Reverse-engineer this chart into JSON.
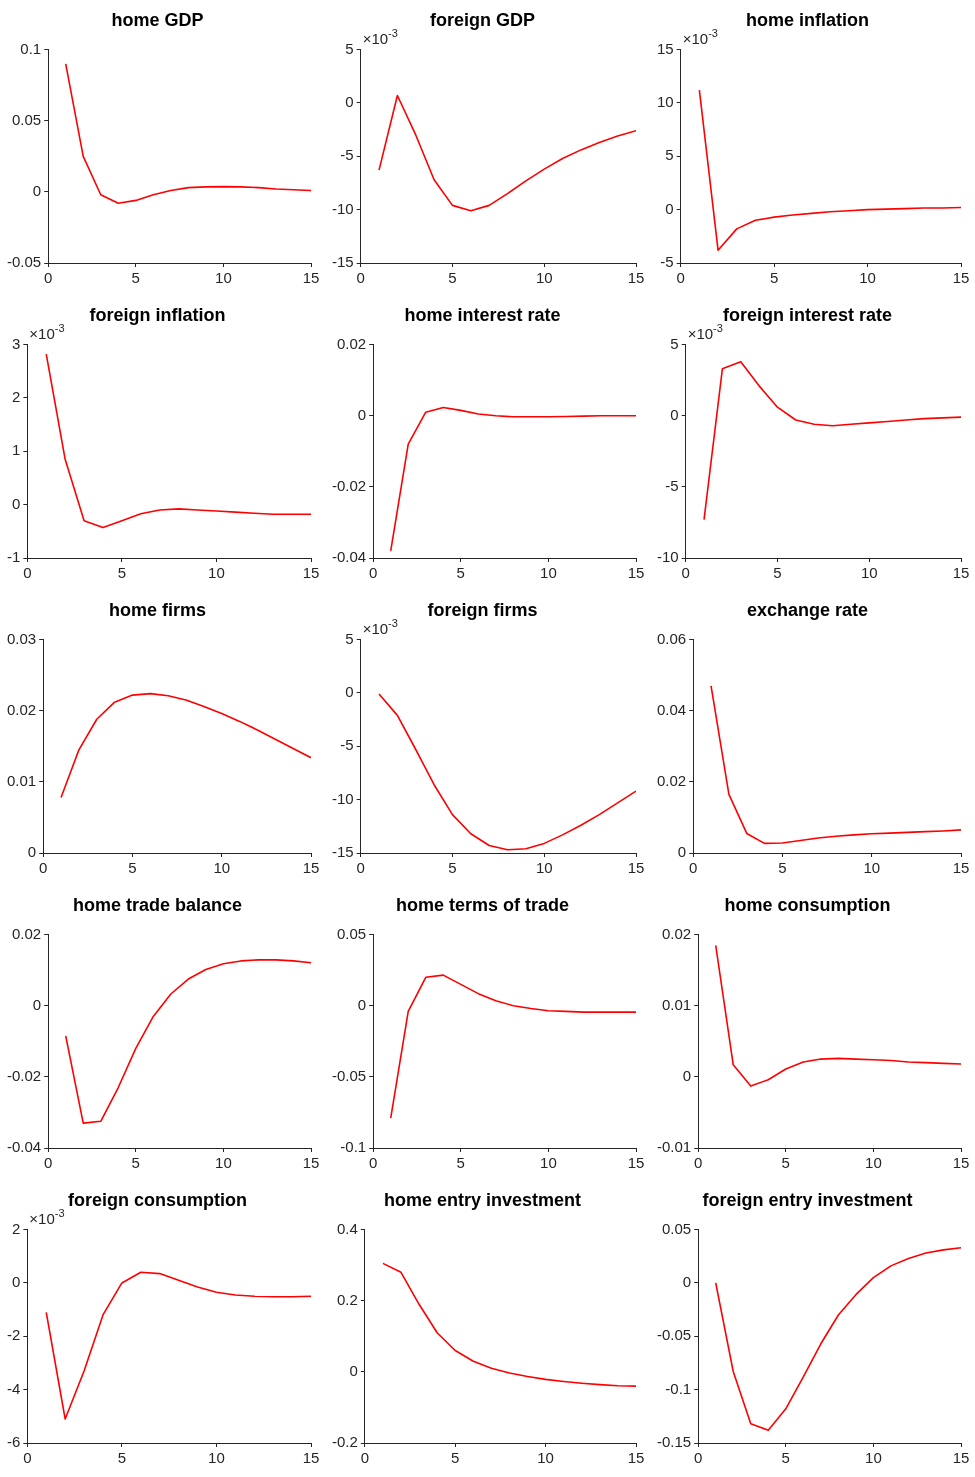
{
  "chart_data": [
    {
      "type": "line",
      "title": "home GDP",
      "x": [
        1,
        2,
        3,
        4,
        5,
        6,
        7,
        8,
        9,
        10,
        11,
        12,
        13,
        14,
        15
      ],
      "xlim": [
        0,
        15
      ],
      "xticks": [
        0,
        5,
        10,
        15
      ],
      "ylim": [
        -0.05,
        0.1
      ],
      "yticks": [
        -0.05,
        0,
        0.05,
        0.1
      ],
      "marker": "none",
      "series": [
        {
          "color": "#ff0000",
          "values": [
            0.09,
            0.025,
            -0.002,
            -0.008,
            -0.006,
            -0.002,
            0.001,
            0.003,
            0.0035,
            0.0037,
            0.0035,
            0.003,
            0.002,
            0.0015,
            0.001
          ]
        }
      ]
    },
    {
      "type": "line",
      "title": "foreign GDP",
      "annotations": [
        "×10$^{-3}$"
      ],
      "x": [
        1,
        2,
        3,
        4,
        5,
        6,
        7,
        8,
        9,
        10,
        11,
        12,
        13,
        14,
        15
      ],
      "xlim": [
        0,
        15
      ],
      "xticks": [
        0,
        5,
        10,
        15
      ],
      "ylim": [
        -15,
        5
      ],
      "yticks": [
        -15,
        -10,
        -5,
        0,
        5
      ],
      "marker": "none",
      "series": [
        {
          "color": "#ff0000",
          "values": [
            -6.3,
            0.7,
            -3,
            -7.2,
            -9.6,
            -10.1,
            -9.6,
            -8.5,
            -7.3,
            -6.2,
            -5.2,
            -4.4,
            -3.7,
            -3.1,
            -2.6
          ]
        }
      ]
    },
    {
      "type": "line",
      "title": "home inflation",
      "annotations": [
        "×10$^{-3}$"
      ],
      "x": [
        1,
        2,
        3,
        4,
        5,
        6,
        7,
        8,
        9,
        10,
        11,
        12,
        13,
        14,
        15
      ],
      "xlim": [
        0,
        15
      ],
      "xticks": [
        0,
        5,
        10,
        15
      ],
      "ylim": [
        -5,
        15
      ],
      "yticks": [
        -5,
        0,
        5,
        10,
        15
      ],
      "marker": "none",
      "series": [
        {
          "color": "#ff0000",
          "values": [
            11.2,
            -3.8,
            -1.8,
            -1,
            -0.7,
            -0.5,
            -0.35,
            -0.2,
            -0.1,
            0,
            0.05,
            0.1,
            0.15,
            0.15,
            0.2
          ]
        }
      ]
    },
    {
      "type": "line",
      "title": "foreign inflation",
      "annotations": [
        "×10$^{-3}$"
      ],
      "x": [
        1,
        2,
        3,
        4,
        5,
        6,
        7,
        8,
        9,
        10,
        11,
        12,
        13,
        14,
        15
      ],
      "xlim": [
        0,
        15
      ],
      "xticks": [
        0,
        5,
        10,
        15
      ],
      "ylim": [
        -1,
        3
      ],
      "yticks": [
        -1,
        0,
        1,
        2,
        3
      ],
      "marker": "none",
      "series": [
        {
          "color": "#ff0000",
          "values": [
            2.82,
            0.85,
            -0.3,
            -0.43,
            -0.3,
            -0.17,
            -0.1,
            -0.08,
            -0.1,
            -0.12,
            -0.14,
            -0.16,
            -0.18,
            -0.18,
            -0.18
          ]
        }
      ]
    },
    {
      "type": "line",
      "title": "home interest rate",
      "x": [
        1,
        2,
        3,
        4,
        5,
        6,
        7,
        8,
        9,
        10,
        11,
        12,
        13,
        14,
        15
      ],
      "xlim": [
        0,
        15
      ],
      "xticks": [
        0,
        5,
        10,
        15
      ],
      "ylim": [
        -0.04,
        0.02
      ],
      "yticks": [
        -0.04,
        -0.02,
        0,
        0.02
      ],
      "marker": "none",
      "series": [
        {
          "color": "#ff0000",
          "values": [
            -0.038,
            -0.008,
            0.001,
            0.0023,
            0.0015,
            0.0005,
            0,
            -0.0003,
            -0.0003,
            -0.0003,
            -0.0002,
            -0.0001,
            0,
            0,
            0
          ]
        }
      ]
    },
    {
      "type": "line",
      "title": "foreign interest rate",
      "annotations": [
        "×10$^{-3}$"
      ],
      "x": [
        1,
        2,
        3,
        4,
        5,
        6,
        7,
        8,
        9,
        10,
        11,
        12,
        13,
        14,
        15
      ],
      "xlim": [
        0,
        15
      ],
      "xticks": [
        0,
        5,
        10,
        15
      ],
      "ylim": [
        -10,
        5
      ],
      "yticks": [
        -10,
        -5,
        0,
        5
      ],
      "marker": "none",
      "series": [
        {
          "color": "#ff0000",
          "values": [
            -7.3,
            3.3,
            3.8,
            2.1,
            0.6,
            -0.3,
            -0.6,
            -0.7,
            -0.6,
            -0.5,
            -0.4,
            -0.3,
            -0.2,
            -0.15,
            -0.1
          ]
        }
      ]
    },
    {
      "type": "line",
      "title": "home firms",
      "x": [
        1,
        2,
        3,
        4,
        5,
        6,
        7,
        8,
        9,
        10,
        11,
        12,
        13,
        14,
        15
      ],
      "xlim": [
        0,
        15
      ],
      "xticks": [
        0,
        5,
        10,
        15
      ],
      "ylim": [
        0,
        0.03
      ],
      "yticks": [
        0,
        0.01,
        0.02,
        0.03
      ],
      "marker": "none",
      "series": [
        {
          "color": "#ff0000",
          "values": [
            0.0078,
            0.0145,
            0.0188,
            0.0212,
            0.0222,
            0.0224,
            0.0221,
            0.0215,
            0.0206,
            0.0196,
            0.0185,
            0.0173,
            0.016,
            0.0147,
            0.0134
          ]
        }
      ]
    },
    {
      "type": "line",
      "title": "foreign firms",
      "annotations": [
        "×10$^{-3}$"
      ],
      "x": [
        1,
        2,
        3,
        4,
        5,
        6,
        7,
        8,
        9,
        10,
        11,
        12,
        13,
        14,
        15
      ],
      "xlim": [
        0,
        15
      ],
      "xticks": [
        0,
        5,
        10,
        15
      ],
      "ylim": [
        -15,
        5
      ],
      "yticks": [
        -15,
        -10,
        -5,
        0,
        5
      ],
      "marker": "none",
      "series": [
        {
          "color": "#ff0000",
          "values": [
            -0.1,
            -2.1,
            -5.3,
            -8.6,
            -11.4,
            -13.2,
            -14.3,
            -14.7,
            -14.6,
            -14.1,
            -13.3,
            -12.4,
            -11.4,
            -10.3,
            -9.2
          ]
        }
      ]
    },
    {
      "type": "line",
      "title": "exchange rate",
      "x": [
        1,
        2,
        3,
        4,
        5,
        6,
        7,
        8,
        9,
        10,
        11,
        12,
        13,
        14,
        15
      ],
      "xlim": [
        0,
        15
      ],
      "xticks": [
        0,
        5,
        10,
        15
      ],
      "ylim": [
        0,
        0.06
      ],
      "yticks": [
        0,
        0.02,
        0.04,
        0.06
      ],
      "marker": "none",
      "series": [
        {
          "color": "#ff0000",
          "values": [
            0.047,
            0.0165,
            0.0055,
            0.0027,
            0.0028,
            0.0035,
            0.0042,
            0.0047,
            0.0051,
            0.0054,
            0.0056,
            0.0058,
            0.006,
            0.0062,
            0.0065
          ]
        }
      ]
    },
    {
      "type": "line",
      "title": "home trade balance",
      "x": [
        1,
        2,
        3,
        4,
        5,
        6,
        7,
        8,
        9,
        10,
        11,
        12,
        13,
        14,
        15
      ],
      "xlim": [
        0,
        15
      ],
      "xticks": [
        0,
        5,
        10,
        15
      ],
      "ylim": [
        -0.04,
        0.02
      ],
      "yticks": [
        -0.04,
        -0.02,
        0,
        0.02
      ],
      "marker": "none",
      "series": [
        {
          "color": "#ff0000",
          "values": [
            -0.0085,
            -0.033,
            -0.0325,
            -0.023,
            -0.012,
            -0.003,
            0.0033,
            0.0075,
            0.0102,
            0.0118,
            0.0126,
            0.0129,
            0.0129,
            0.0126,
            0.0121
          ]
        }
      ]
    },
    {
      "type": "line",
      "title": "home terms of trade",
      "x": [
        1,
        2,
        3,
        4,
        5,
        6,
        7,
        8,
        9,
        10,
        11,
        12,
        13,
        14,
        15
      ],
      "xlim": [
        0,
        15
      ],
      "xticks": [
        0,
        5,
        10,
        15
      ],
      "ylim": [
        -0.1,
        0.05
      ],
      "yticks": [
        -0.1,
        -0.05,
        0,
        0.05
      ],
      "marker": "none",
      "series": [
        {
          "color": "#ff0000",
          "values": [
            -0.079,
            -0.004,
            0.02,
            0.0215,
            0.015,
            0.0085,
            0.0035,
            0,
            -0.002,
            -0.0035,
            -0.004,
            -0.0045,
            -0.0045,
            -0.0045,
            -0.0045
          ]
        }
      ]
    },
    {
      "type": "line",
      "title": "home consumption",
      "x": [
        1,
        2,
        3,
        4,
        5,
        6,
        7,
        8,
        9,
        10,
        11,
        12,
        13,
        14,
        15
      ],
      "xlim": [
        0,
        15
      ],
      "xticks": [
        0,
        5,
        10,
        15
      ],
      "ylim": [
        -0.01,
        0.02
      ],
      "yticks": [
        -0.01,
        0,
        0.01,
        0.02
      ],
      "marker": "none",
      "series": [
        {
          "color": "#ff0000",
          "values": [
            0.0185,
            0.0017,
            -0.0013,
            -0.0004,
            0.0011,
            0.0021,
            0.0025,
            0.0026,
            0.0025,
            0.0024,
            0.0023,
            0.0021,
            0.002,
            0.0019,
            0.0018
          ]
        }
      ]
    },
    {
      "type": "line",
      "title": "foreign consumption",
      "annotations": [
        "×10$^{-3}$"
      ],
      "x": [
        1,
        2,
        3,
        4,
        5,
        6,
        7,
        8,
        9,
        10,
        11,
        12,
        13,
        14,
        15
      ],
      "xlim": [
        0,
        15
      ],
      "xticks": [
        0,
        5,
        10,
        15
      ],
      "ylim": [
        -6,
        2
      ],
      "yticks": [
        -6,
        -4,
        -2,
        0,
        2
      ],
      "marker": "none",
      "series": [
        {
          "color": "#ff0000",
          "values": [
            -1.1,
            -5.1,
            -3.3,
            -1.2,
            0,
            0.4,
            0.35,
            0.1,
            -0.15,
            -0.35,
            -0.45,
            -0.5,
            -0.52,
            -0.52,
            -0.5
          ]
        }
      ]
    },
    {
      "type": "line",
      "title": "home entry investment",
      "x": [
        1,
        2,
        3,
        4,
        5,
        6,
        7,
        8,
        9,
        10,
        11,
        12,
        13,
        14,
        15
      ],
      "xlim": [
        0,
        15
      ],
      "xticks": [
        0,
        5,
        10,
        15
      ],
      "ylim": [
        -0.2,
        0.4
      ],
      "yticks": [
        -0.2,
        0,
        0.2,
        0.4
      ],
      "marker": "none",
      "series": [
        {
          "color": "#ff0000",
          "values": [
            0.305,
            0.28,
            0.19,
            0.11,
            0.06,
            0.03,
            0.01,
            -0.003,
            -0.013,
            -0.021,
            -0.027,
            -0.032,
            -0.036,
            -0.039,
            -0.04
          ]
        }
      ]
    },
    {
      "type": "line",
      "title": "foreign entry investment",
      "x": [
        1,
        2,
        3,
        4,
        5,
        6,
        7,
        8,
        9,
        10,
        11,
        12,
        13,
        14,
        15
      ],
      "xlim": [
        0,
        15
      ],
      "xticks": [
        0,
        5,
        10,
        15
      ],
      "ylim": [
        -0.15,
        0.05
      ],
      "yticks": [
        -0.15,
        -0.1,
        -0.05,
        0,
        0.05
      ],
      "marker": "none",
      "series": [
        {
          "color": "#ff0000",
          "values": [
            0,
            -0.083,
            -0.132,
            -0.138,
            -0.118,
            -0.088,
            -0.057,
            -0.03,
            -0.011,
            0.005,
            0.016,
            0.023,
            0.028,
            0.031,
            0.033
          ]
        }
      ]
    }
  ]
}
